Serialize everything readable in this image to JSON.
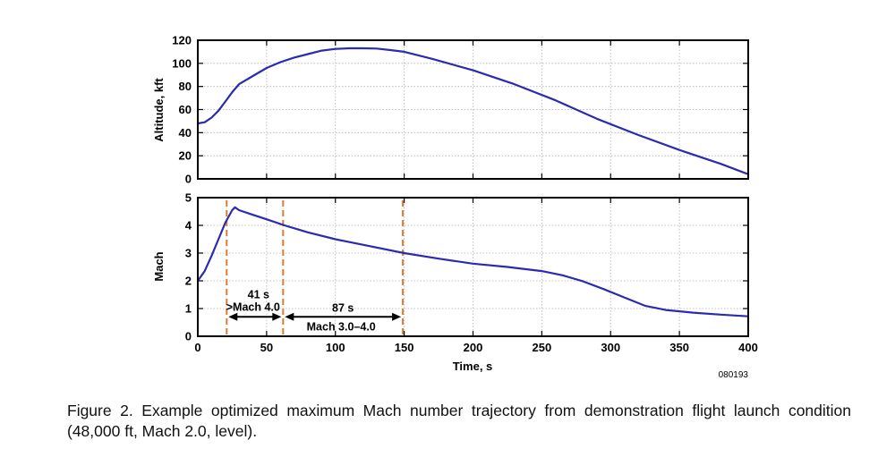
{
  "chart_data": [
    {
      "type": "line",
      "panel": "top",
      "title": "",
      "xlabel": "",
      "ylabel": "Altitude, kft",
      "xlim": [
        0,
        400
      ],
      "ylim": [
        0,
        120
      ],
      "xticks": [
        0,
        50,
        100,
        150,
        200,
        250,
        300,
        350,
        400
      ],
      "yticks": [
        0,
        20,
        40,
        60,
        80,
        100,
        120
      ],
      "grid": true,
      "series": [
        {
          "name": "Altitude",
          "color": "#2b2bb0",
          "x": [
            0,
            5,
            10,
            15,
            20,
            25,
            30,
            40,
            50,
            60,
            70,
            80,
            90,
            100,
            110,
            120,
            130,
            140,
            150,
            170,
            200,
            230,
            260,
            290,
            320,
            350,
            380,
            400
          ],
          "y": [
            48,
            49,
            53,
            59,
            67,
            75,
            82,
            89,
            96,
            101,
            105,
            108,
            111,
            112.5,
            113,
            113,
            112.8,
            111.5,
            110,
            104,
            94,
            82,
            68,
            52,
            38,
            25,
            13,
            4
          ]
        }
      ]
    },
    {
      "type": "line",
      "panel": "bottom",
      "title": "",
      "xlabel": "Time, s",
      "ylabel": "Mach",
      "xlim": [
        0,
        400
      ],
      "ylim": [
        0,
        5
      ],
      "xticks": [
        0,
        50,
        100,
        150,
        200,
        250,
        300,
        350,
        400
      ],
      "xtick_labels": [
        "0",
        "50",
        "100",
        "150",
        "200",
        "250",
        "300",
        "350",
        "400"
      ],
      "yticks": [
        0,
        1,
        2,
        3,
        4,
        5
      ],
      "grid": true,
      "series": [
        {
          "name": "Mach",
          "color": "#2b2bb0",
          "x": [
            0,
            5,
            10,
            15,
            20,
            25,
            27,
            30,
            40,
            50,
            63,
            80,
            100,
            120,
            150,
            175,
            200,
            225,
            250,
            265,
            280,
            295,
            310,
            325,
            340,
            360,
            380,
            400
          ],
          "y": [
            2.0,
            2.35,
            2.9,
            3.5,
            4.1,
            4.55,
            4.65,
            4.55,
            4.38,
            4.22,
            4.0,
            3.75,
            3.5,
            3.3,
            3.0,
            2.8,
            2.62,
            2.5,
            2.35,
            2.2,
            1.98,
            1.7,
            1.4,
            1.1,
            0.95,
            0.85,
            0.78,
            0.72
          ]
        }
      ],
      "markers": {
        "vlines_x": [
          21,
          62,
          149
        ],
        "color": "#e07a2e"
      },
      "annotations": [
        {
          "line1": "41 s",
          "line2": ">Mach 4.0",
          "x_from": 21,
          "x_to": 62,
          "arrow_y": 0.7
        },
        {
          "line1": "87 s",
          "line2": "Mach 3.0–4.0",
          "x_from": 62,
          "x_to": 149,
          "arrow_y": 0.7
        }
      ]
    }
  ],
  "figure_id": "080193",
  "caption": "Figure 2. Example optimized maximum Mach number trajectory from demonstration flight launch condition (48,000 ft, Mach 2.0, level)."
}
